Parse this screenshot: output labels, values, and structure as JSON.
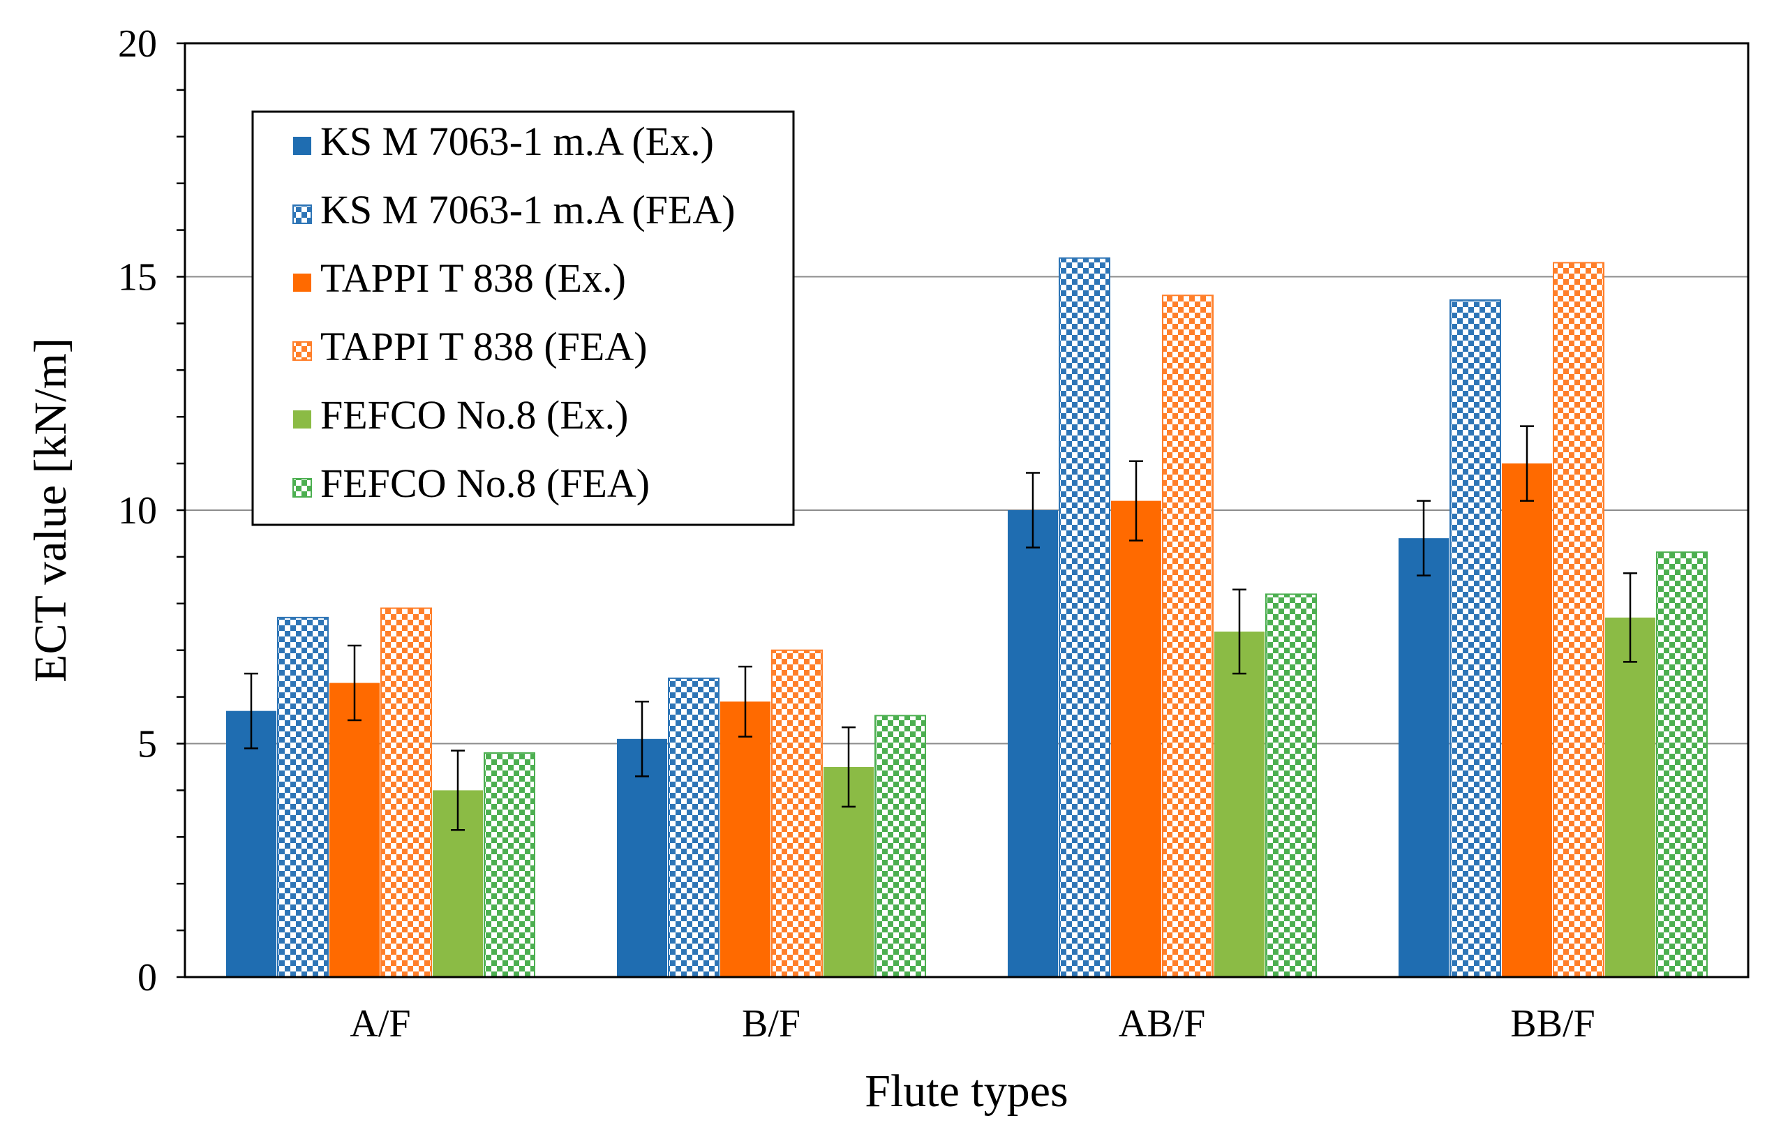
{
  "chart_data": {
    "type": "bar",
    "title": "",
    "xlabel": "Flute types",
    "ylabel": "ECT value [kN/m]",
    "ylim": [
      0,
      20
    ],
    "major_tick_step": 5,
    "minor_tick_step": 1,
    "y_tick_labels": [
      "0",
      "5",
      "10",
      "15",
      "20"
    ],
    "grid": "major horizontal gridlines",
    "legend_position": "top-left",
    "categories": [
      "A/F",
      "B/F",
      "AB/F",
      "BB/F"
    ],
    "series": [
      {
        "name": "KS M 7063-1 m.A (Ex.)",
        "values": [
          5.7,
          5.1,
          10.0,
          9.4
        ],
        "errors": [
          0.8,
          0.8,
          0.8,
          0.8
        ],
        "color": "#1f6db1",
        "pattern": "solid"
      },
      {
        "name": "KS M 7063-1 m.A (FEA)",
        "values": [
          7.7,
          6.4,
          15.4,
          14.5
        ],
        "errors": null,
        "color": "#2e75b6",
        "pattern": "checker"
      },
      {
        "name": "TAPPI T 838 (Ex.)",
        "values": [
          6.3,
          5.9,
          10.2,
          11.0
        ],
        "errors": [
          0.8,
          0.75,
          0.85,
          0.8
        ],
        "color": "#ff6a00",
        "pattern": "solid"
      },
      {
        "name": "TAPPI T 838 (FEA)",
        "values": [
          7.9,
          7.0,
          14.6,
          15.3
        ],
        "errors": null,
        "color": "#ff7f2a",
        "pattern": "checker"
      },
      {
        "name": "FEFCO No.8 (Ex.)",
        "values": [
          4.0,
          4.5,
          7.4,
          7.7
        ],
        "errors": [
          0.85,
          0.85,
          0.9,
          0.95
        ],
        "color": "#8bbb45",
        "pattern": "solid"
      },
      {
        "name": "FEFCO No.8 (FEA)",
        "values": [
          4.8,
          5.6,
          8.2,
          9.1
        ],
        "errors": null,
        "color": "#4caf50",
        "pattern": "checker"
      }
    ]
  }
}
